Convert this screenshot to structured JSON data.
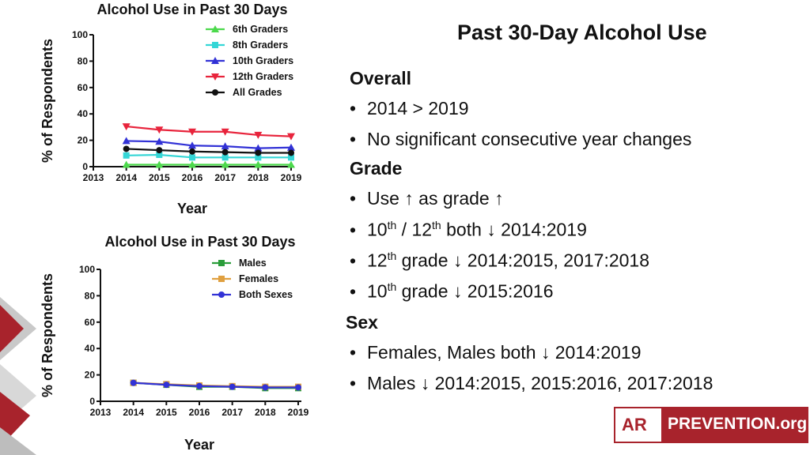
{
  "colors": {
    "grade6": "#4cd94c",
    "grade8": "#34d6d6",
    "grade10": "#3232d6",
    "grade12": "#e8243c",
    "all": "#111111",
    "males": "#2a9d3a",
    "females": "#e0a040",
    "both": "#3232d6",
    "brand": "#a8232c"
  },
  "chart_data": [
    {
      "type": "line",
      "title": "Alcohol Use in Past 30 Days",
      "xlabel": "Year",
      "ylabel": "% of Respondents",
      "xlim": [
        2013,
        2019
      ],
      "ylim": [
        0,
        100
      ],
      "x_ticks": [
        "2013",
        "2014",
        "2015",
        "2016",
        "2017",
        "2018",
        "2019"
      ],
      "y_ticks": [
        "0",
        "20",
        "40",
        "60",
        "80",
        "100"
      ],
      "legend_position": "top-right",
      "x": [
        2014,
        2015,
        2016,
        2017,
        2018,
        2019
      ],
      "series": [
        {
          "name": "6th Graders",
          "values": [
            1.5,
            1.5,
            1.5,
            1.5,
            1.5,
            1.5
          ],
          "color": "#4cd94c",
          "marker": "triangle-up"
        },
        {
          "name": "8th Graders",
          "values": [
            8.5,
            9,
            7,
            7,
            7,
            7
          ],
          "color": "#34d6d6",
          "marker": "square"
        },
        {
          "name": "10th Graders",
          "values": [
            19.5,
            19,
            16,
            15.5,
            14,
            14.5
          ],
          "color": "#3232d6",
          "marker": "triangle-up"
        },
        {
          "name": "12th Graders",
          "values": [
            30.5,
            28,
            26.5,
            26.5,
            24,
            23
          ],
          "color": "#e8243c",
          "marker": "triangle-down"
        },
        {
          "name": "All Grades",
          "values": [
            13.5,
            12.5,
            11.5,
            11,
            10.5,
            10.5
          ],
          "color": "#111111",
          "marker": "circle"
        }
      ]
    },
    {
      "type": "line",
      "title": "Alcohol Use in Past 30 Days",
      "xlabel": "Year",
      "ylabel": "% of Respondents",
      "xlim": [
        2013,
        2019
      ],
      "ylim": [
        0,
        100
      ],
      "x_ticks": [
        "2013",
        "2014",
        "2015",
        "2016",
        "2017",
        "2018",
        "2019"
      ],
      "y_ticks": [
        "0",
        "20",
        "40",
        "60",
        "80",
        "100"
      ],
      "legend_position": "top-right",
      "x": [
        2014,
        2015,
        2016,
        2017,
        2018,
        2019
      ],
      "series": [
        {
          "name": "Males",
          "values": [
            14,
            12.5,
            11,
            11,
            10,
            10
          ],
          "color": "#2a9d3a",
          "marker": "square"
        },
        {
          "name": "Females",
          "values": [
            14,
            13,
            12,
            11.5,
            11,
            11
          ],
          "color": "#e0a040",
          "marker": "square"
        },
        {
          "name": "Both Sexes",
          "values": [
            14,
            12.5,
            11.5,
            11,
            10.5,
            10.5
          ],
          "color": "#3232d6",
          "marker": "circle"
        }
      ]
    }
  ],
  "slide": {
    "title": "Past 30-Day Alcohol Use",
    "overall": {
      "heading": "Overall",
      "b1": "2014 > 2019",
      "b2": "No significant consecutive year changes"
    },
    "grade": {
      "heading": "Grade",
      "b1": "Use ↑ as grade ↑",
      "b2_a": "10",
      "b2_sup1": "th",
      "b2_b": " / 12",
      "b2_sup2": "th",
      "b2_c": " both ↓ 2014:2019",
      "b3_a": "12",
      "b3_sup": "th",
      "b3_b": " grade ↓ 2014:2015, 2017:2018",
      "b4_a": "10",
      "b4_sup": "th",
      "b4_b": " grade ↓ 2015:2016"
    },
    "sex": {
      "heading": "Sex",
      "b1": "Females, Males both ↓ 2014:2019",
      "b2": "Males ↓ 2014:2015, 2015:2016, 2017:2018"
    },
    "bullet": "•"
  },
  "logo": {
    "left_text": "AR",
    "right_text": "PREVENTION.org"
  }
}
